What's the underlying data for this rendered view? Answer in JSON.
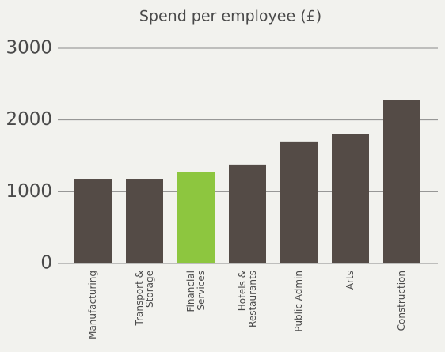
{
  "chart_data": {
    "type": "bar",
    "title": "Spend per employee (£)",
    "categories": [
      "Manufacturing",
      "Transport &\nStorage",
      "Financial\nServices",
      "Hotels &\nRestaurants",
      "Public Admin",
      "Arts",
      "Construction"
    ],
    "values": [
      1180,
      1180,
      1270,
      1380,
      1700,
      1800,
      2280
    ],
    "colors": [
      "#544b46",
      "#544b46",
      "#8dc63f",
      "#544b46",
      "#544b46",
      "#544b46",
      "#544b46"
    ],
    "ylim": [
      0,
      3000
    ],
    "yticks": [
      0,
      1000,
      2000,
      3000
    ],
    "grid": true
  }
}
